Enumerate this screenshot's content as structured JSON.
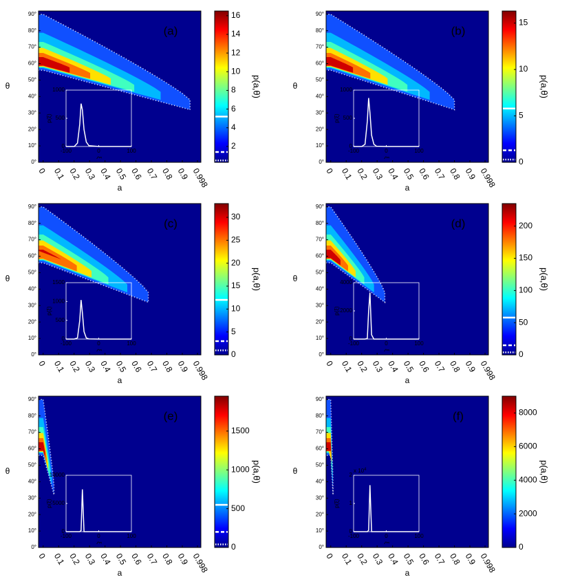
{
  "chart_data": [
    {
      "type": "heatmap",
      "label": "(a)",
      "xlabel": "a",
      "ylabel": "θ",
      "colorbar_label": "p(a,θ)",
      "xlim": [
        -0.03,
        1.02
      ],
      "ylim": [
        0,
        92
      ],
      "xticks": [
        0,
        0.1,
        0.2,
        0.3,
        0.4,
        0.5,
        0.6,
        0.7,
        0.8,
        0.9,
        0.998
      ],
      "yticks": [
        {
          "value": 0,
          "label": "0°"
        },
        {
          "value": 10,
          "label": "10°"
        },
        {
          "value": 20,
          "label": "20°"
        },
        {
          "value": 30,
          "label": "30°"
        },
        {
          "value": 40,
          "label": "40°"
        },
        {
          "value": 50,
          "label": "50°"
        },
        {
          "value": 60,
          "label": "60°"
        },
        {
          "value": 70,
          "label": "70°"
        },
        {
          "value": 80,
          "label": "80°"
        },
        {
          "value": 90,
          "label": "90°"
        }
      ],
      "clim": [
        0.3,
        16.5
      ],
      "cticks": [
        2,
        4,
        6,
        8,
        10,
        12,
        14,
        16
      ],
      "contour_levels": [
        5.2,
        1.4,
        0.5
      ],
      "inset": {
        "type": "line",
        "xlabel": "ξ",
        "ylabel": "p(ξ)",
        "xlim": [
          -100,
          100
        ],
        "ylim": [
          0,
          1000
        ],
        "xticks": [
          -100,
          0,
          100
        ],
        "yticks": [
          0,
          500,
          1000
        ],
        "color": "#ffffff",
        "x": [
          -100,
          -75,
          -65,
          -58,
          -54,
          -50,
          -45,
          -38,
          -30,
          0,
          100
        ],
        "values": [
          0,
          0,
          60,
          400,
          760,
          650,
          300,
          80,
          15,
          0,
          0
        ]
      }
    },
    {
      "type": "heatmap",
      "label": "(b)",
      "xlabel": "a",
      "ylabel": "θ",
      "colorbar_label": "p(a,θ)",
      "xlim": [
        -0.03,
        1.02
      ],
      "ylim": [
        0,
        92
      ],
      "xticks": [
        0,
        0.1,
        0.2,
        0.3,
        0.4,
        0.5,
        0.6,
        0.7,
        0.8,
        0.9,
        0.998
      ],
      "yticks": [
        {
          "value": 0,
          "label": "0°"
        },
        {
          "value": 10,
          "label": "10°"
        },
        {
          "value": 20,
          "label": "20°"
        },
        {
          "value": 30,
          "label": "30°"
        },
        {
          "value": 40,
          "label": "40°"
        },
        {
          "value": 50,
          "label": "50°"
        },
        {
          "value": 60,
          "label": "60°"
        },
        {
          "value": 70,
          "label": "70°"
        },
        {
          "value": 80,
          "label": "80°"
        },
        {
          "value": 90,
          "label": "90°"
        }
      ],
      "clim": [
        0,
        16.3
      ],
      "cticks": [
        0,
        5,
        10,
        15
      ],
      "contour_levels": [
        5.8,
        1.3,
        0.3
      ],
      "inset": {
        "type": "line",
        "xlabel": "ξ",
        "ylabel": "p(ξ)",
        "xlim": [
          -100,
          100
        ],
        "ylim": [
          0,
          1000
        ],
        "xticks": [
          -100,
          0,
          100
        ],
        "yticks": [
          0,
          500,
          1000
        ],
        "color": "#ffffff",
        "x": [
          -100,
          -75,
          -65,
          -58,
          -54,
          -50,
          -45,
          -38,
          -30,
          0,
          100
        ],
        "values": [
          0,
          0,
          40,
          450,
          860,
          600,
          200,
          40,
          5,
          0,
          0
        ]
      }
    },
    {
      "type": "heatmap",
      "label": "(c)",
      "xlabel": "a",
      "ylabel": "θ",
      "colorbar_label": "p(a,θ)",
      "xlim": [
        -0.03,
        1.02
      ],
      "ylim": [
        0,
        92
      ],
      "xticks": [
        0,
        0.1,
        0.2,
        0.3,
        0.4,
        0.5,
        0.6,
        0.7,
        0.8,
        0.9,
        0.998
      ],
      "yticks": [
        {
          "value": 0,
          "label": "0°"
        },
        {
          "value": 10,
          "label": "10°"
        },
        {
          "value": 20,
          "label": "20°"
        },
        {
          "value": 30,
          "label": "30°"
        },
        {
          "value": 40,
          "label": "40°"
        },
        {
          "value": 50,
          "label": "50°"
        },
        {
          "value": 60,
          "label": "60°"
        },
        {
          "value": 70,
          "label": "70°"
        },
        {
          "value": 80,
          "label": "80°"
        },
        {
          "value": 90,
          "label": "90°"
        }
      ],
      "clim": [
        0,
        33
      ],
      "cticks": [
        0,
        5,
        10,
        15,
        20,
        25,
        30
      ],
      "contour_levels": [
        12,
        3,
        1
      ],
      "inset": {
        "type": "line",
        "xlabel": "ξ",
        "ylabel": "p(ξ)",
        "xlim": [
          -100,
          100
        ],
        "ylim": [
          0,
          1500
        ],
        "xticks": [
          -100,
          0,
          100
        ],
        "yticks": [
          0,
          500,
          1000,
          1500
        ],
        "color": "#ffffff",
        "x": [
          -100,
          -75,
          -65,
          -58,
          -54,
          -50,
          -45,
          -38,
          -30,
          0,
          100
        ],
        "values": [
          0,
          0,
          30,
          500,
          1040,
          700,
          200,
          30,
          5,
          0,
          0
        ]
      }
    },
    {
      "type": "heatmap",
      "label": "(d)",
      "xlabel": "a",
      "ylabel": "θ",
      "colorbar_label": "p(a,θ)",
      "xlim": [
        -0.03,
        1.02
      ],
      "ylim": [
        0,
        92
      ],
      "xticks": [
        0,
        0.1,
        0.2,
        0.3,
        0.4,
        0.5,
        0.6,
        0.7,
        0.8,
        0.9,
        0.998
      ],
      "yticks": [
        {
          "value": 0,
          "label": "0°"
        },
        {
          "value": 10,
          "label": "10°"
        },
        {
          "value": 20,
          "label": "20°"
        },
        {
          "value": 30,
          "label": "30°"
        },
        {
          "value": 40,
          "label": "40°"
        },
        {
          "value": 50,
          "label": "50°"
        },
        {
          "value": 60,
          "label": "60°"
        },
        {
          "value": 70,
          "label": "70°"
        },
        {
          "value": 80,
          "label": "80°"
        },
        {
          "value": 90,
          "label": "90°"
        }
      ],
      "clim": [
        0,
        235
      ],
      "cticks": [
        0,
        50,
        100,
        150,
        200
      ],
      "contour_levels": [
        58,
        15,
        4
      ],
      "inset": {
        "type": "line",
        "xlabel": "ξ",
        "ylabel": "p(ξ)",
        "xlim": [
          -100,
          100
        ],
        "ylim": [
          0,
          4000
        ],
        "xticks": [
          -100,
          0,
          100
        ],
        "yticks": [
          0,
          2000,
          4000
        ],
        "color": "#ffffff",
        "x": [
          -100,
          -75,
          -65,
          -58,
          -54,
          -50,
          -45,
          -38,
          -30,
          0,
          100
        ],
        "values": [
          0,
          0,
          0,
          50,
          2000,
          3300,
          300,
          0,
          0,
          0,
          0
        ]
      }
    },
    {
      "type": "heatmap",
      "label": "(e)",
      "xlabel": "a",
      "ylabel": "θ",
      "colorbar_label": "p(a,θ)",
      "xlim": [
        -0.03,
        1.02
      ],
      "ylim": [
        0,
        92
      ],
      "xticks": [
        0,
        0.1,
        0.2,
        0.3,
        0.4,
        0.5,
        0.6,
        0.7,
        0.8,
        0.9,
        0.998
      ],
      "yticks": [
        {
          "value": 0,
          "label": "0°"
        },
        {
          "value": 10,
          "label": "10°"
        },
        {
          "value": 20,
          "label": "20°"
        },
        {
          "value": 30,
          "label": "30°"
        },
        {
          "value": 40,
          "label": "40°"
        },
        {
          "value": 50,
          "label": "50°"
        },
        {
          "value": 60,
          "label": "60°"
        },
        {
          "value": 70,
          "label": "70°"
        },
        {
          "value": 80,
          "label": "80°"
        },
        {
          "value": 90,
          "label": "90°"
        }
      ],
      "clim": [
        0,
        1950
      ],
      "cticks": [
        0,
        500,
        1000,
        1500
      ],
      "contour_levels": [
        550,
        200,
        40
      ],
      "inset": {
        "type": "line",
        "xlabel": "ξ",
        "ylabel": "p(ξ)",
        "xlim": [
          -100,
          100
        ],
        "ylim": [
          0,
          10000
        ],
        "xticks": [
          -100,
          0,
          100
        ],
        "yticks": [
          0,
          5000,
          10000
        ],
        "color": "#ffffff",
        "x": [
          -100,
          -75,
          -65,
          -58,
          -54,
          -50,
          -45,
          -38,
          -30,
          0,
          100
        ],
        "values": [
          0,
          0,
          0,
          0,
          200,
          7500,
          0,
          0,
          0,
          0,
          0
        ]
      }
    },
    {
      "type": "heatmap",
      "label": "(f)",
      "xlabel": "a",
      "ylabel": "θ",
      "colorbar_label": "p(a,θ)",
      "xlim": [
        -0.03,
        1.02
      ],
      "ylim": [
        0,
        92
      ],
      "xticks": [
        0,
        0.1,
        0.2,
        0.3,
        0.4,
        0.5,
        0.6,
        0.7,
        0.8,
        0.9,
        0.998
      ],
      "yticks": [
        {
          "value": 0,
          "label": "0°"
        },
        {
          "value": 10,
          "label": "10°"
        },
        {
          "value": 20,
          "label": "20°"
        },
        {
          "value": 30,
          "label": "30°"
        },
        {
          "value": 40,
          "label": "40°"
        },
        {
          "value": 50,
          "label": "50°"
        },
        {
          "value": 60,
          "label": "60°"
        },
        {
          "value": 70,
          "label": "70°"
        },
        {
          "value": 80,
          "label": "80°"
        },
        {
          "value": 90,
          "label": "90°"
        }
      ],
      "clim": [
        0,
        9000
      ],
      "cticks": [
        0,
        2000,
        4000,
        6000,
        8000
      ],
      "inset": {
        "type": "line",
        "xlabel": "ξ",
        "ylabel": "p(ξ)",
        "ylabel_scale": "x 10",
        "ylabel_scale_exp": "4",
        "xlim": [
          -100,
          100
        ],
        "ylim": [
          0,
          2
        ],
        "xticks": [
          -100,
          0,
          100
        ],
        "yticks": [
          0,
          1,
          2
        ],
        "color": "#ffffff",
        "x": [
          -100,
          -75,
          -65,
          -58,
          -54,
          -50,
          -45,
          -38,
          -30,
          0,
          100
        ],
        "values": [
          0,
          0,
          0,
          0,
          0.05,
          1.65,
          0,
          0,
          0,
          0,
          0
        ]
      }
    }
  ]
}
